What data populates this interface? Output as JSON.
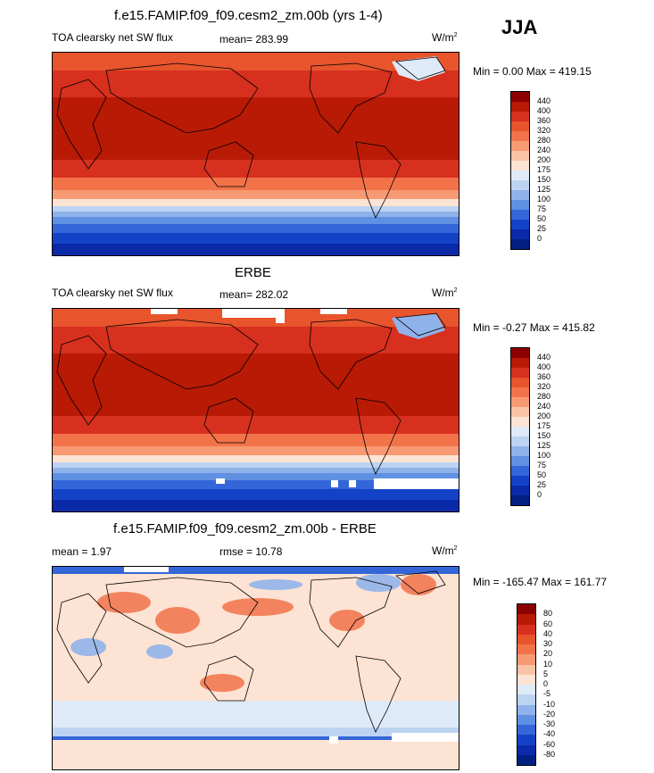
{
  "season": "JJA",
  "panel1": {
    "title": "f.e15.FAMIP.f09_f09.cesm2_zm.00b (yrs 1-4)",
    "left": "TOA clearsky net SW flux",
    "stat": "mean= 283.99",
    "units": "W/m",
    "units_sup": "2",
    "minmax": "Min =   0.00 Max = 419.15"
  },
  "panel2": {
    "title": "ERBE",
    "left": "TOA clearsky net SW flux",
    "stat": "mean= 282.02",
    "units": "W/m",
    "units_sup": "2",
    "minmax": "Min =  -0.27 Max = 415.82"
  },
  "panel3": {
    "title": "f.e15.FAMIP.f09_f09.cesm2_zm.00b - ERBE",
    "left": "mean =   1.97",
    "stat": "rmse =  10.78",
    "units": "W/m",
    "units_sup": "2",
    "minmax": "Min = -165.47 Max = 161.77"
  },
  "colorbar_abs": {
    "labels": [
      "440",
      "400",
      "360",
      "320",
      "280",
      "240",
      "200",
      "175",
      "150",
      "125",
      "100",
      "75",
      "50",
      "25",
      "0"
    ],
    "colors": [
      "#8b0000",
      "#b81a06",
      "#d7301f",
      "#e8542c",
      "#f2734a",
      "#f79a73",
      "#fbc3a6",
      "#fde3d3",
      "#dfeaf8",
      "#bcd3f2",
      "#90b2ea",
      "#6090e2",
      "#3466d9",
      "#1442c7",
      "#0a2aa8",
      "#001f80"
    ]
  },
  "colorbar_diff": {
    "labels": [
      "80",
      "60",
      "40",
      "30",
      "20",
      "10",
      "5",
      "0",
      "-5",
      "-10",
      "-20",
      "-30",
      "-40",
      "-60",
      "-80"
    ],
    "colors": [
      "#8b0000",
      "#b81a06",
      "#d7301f",
      "#e8542c",
      "#f2734a",
      "#f79a73",
      "#fbc3a6",
      "#fde3d3",
      "#dfeaf8",
      "#bcd3f2",
      "#90b2ea",
      "#6090e2",
      "#3466d9",
      "#1442c7",
      "#0a2aa8",
      "#001f80"
    ]
  }
}
